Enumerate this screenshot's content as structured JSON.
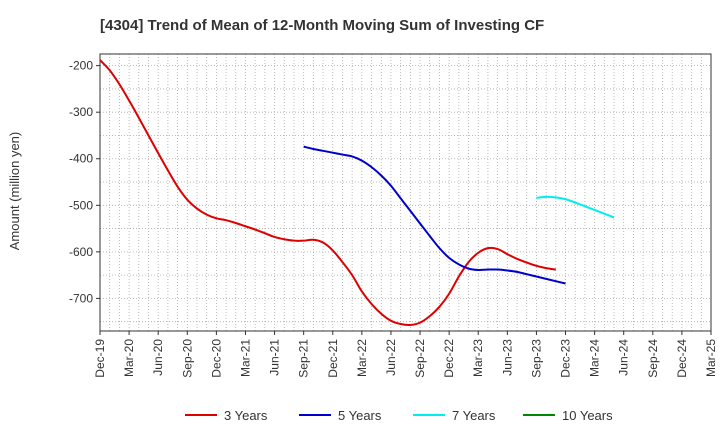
{
  "chart_data": {
    "type": "line",
    "title": "[4304]  Trend of Mean of 12-Month Moving Sum of Investing CF",
    "xlabel": "",
    "ylabel": "Amount (million yen)",
    "ylim": [
      -770,
      -175
    ],
    "yticks": [
      -200,
      -300,
      -400,
      -500,
      -600,
      -700
    ],
    "ytick_labels": [
      "-200",
      "-300",
      "-400",
      "-500",
      "-600",
      "-700"
    ],
    "x_start": "Dec-19",
    "x_end": "Mar-25",
    "xtick_labels": [
      "Dec-19",
      "Mar-20",
      "Jun-20",
      "Sep-20",
      "Dec-20",
      "Mar-21",
      "Jun-21",
      "Sep-21",
      "Dec-21",
      "Mar-22",
      "Jun-22",
      "Sep-22",
      "Dec-22",
      "Mar-23",
      "Jun-23",
      "Sep-23",
      "Dec-23",
      "Mar-24",
      "Jun-24",
      "Sep-24",
      "Dec-24",
      "Mar-25"
    ],
    "grid": true,
    "legend_position": "bottom",
    "series": [
      {
        "name": "3 Years",
        "color": "#dd0000",
        "start_month_index": 0,
        "values": [
          -188,
          -210,
          -240,
          -275,
          -312,
          -350,
          -388,
          -425,
          -460,
          -488,
          -507,
          -520,
          -528,
          -532,
          -538,
          -545,
          -552,
          -560,
          -568,
          -573,
          -576,
          -576,
          -574,
          -580,
          -597,
          -622,
          -650,
          -685,
          -712,
          -733,
          -748,
          -755,
          -757,
          -752,
          -738,
          -718,
          -690,
          -653,
          -622,
          -602,
          -592,
          -594,
          -605,
          -615,
          -623,
          -630,
          -635,
          -638
        ]
      },
      {
        "name": "5 Years",
        "color": "#0000cc",
        "start_month_index": 21,
        "values": [
          -374,
          -379,
          -383,
          -387,
          -391,
          -395,
          -404,
          -418,
          -436,
          -458,
          -485,
          -512,
          -539,
          -566,
          -592,
          -613,
          -627,
          -636,
          -639,
          -638,
          -638,
          -640,
          -643,
          -648,
          -653,
          -658,
          -663,
          -668
        ]
      },
      {
        "name": "7 Years",
        "color": "#00eeee",
        "start_month_index": 45,
        "values": [
          -484,
          -482,
          -483,
          -487,
          -494,
          -502,
          -510,
          -518,
          -526
        ]
      },
      {
        "name": "10 Years",
        "color": "#008800",
        "start_month_index": 0,
        "values": []
      }
    ]
  }
}
